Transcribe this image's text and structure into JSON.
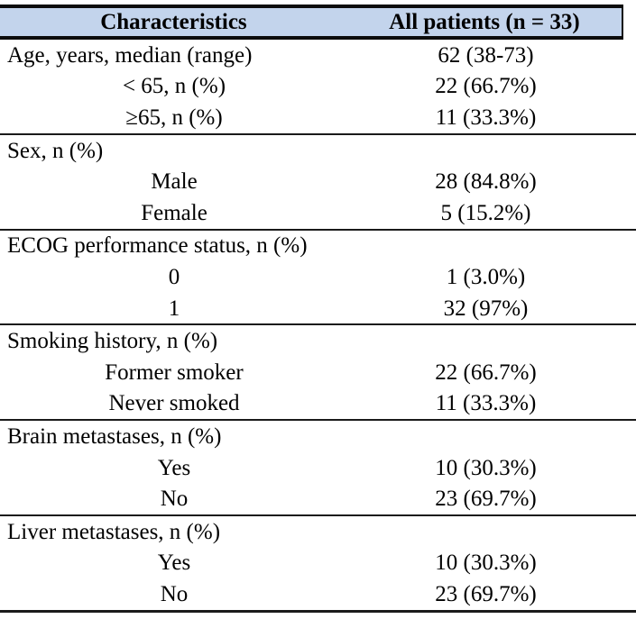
{
  "table": {
    "header": {
      "col1": "Characteristics",
      "col2": "All patients (n = 33)"
    },
    "sections": [
      {
        "rows": [
          {
            "label": "Age, years, median (range)",
            "value": "62 (38-73)",
            "indent": false
          },
          {
            "label": "< 65, n (%)",
            "value": "22 (66.7%)",
            "indent": true
          },
          {
            "label": "≥65, n (%)",
            "value": "11 (33.3%)",
            "indent": true
          }
        ]
      },
      {
        "rows": [
          {
            "label": "Sex, n (%)",
            "value": "",
            "indent": false
          },
          {
            "label": "Male",
            "value": "28 (84.8%)",
            "indent": true
          },
          {
            "label": "Female",
            "value": "5 (15.2%)",
            "indent": true
          }
        ]
      },
      {
        "rows": [
          {
            "label": "ECOG performance status, n (%)",
            "value": "",
            "indent": false
          },
          {
            "label": "0",
            "value": "1 (3.0%)",
            "indent": true
          },
          {
            "label": "1",
            "value": "32 (97%)",
            "indent": true
          }
        ]
      },
      {
        "rows": [
          {
            "label": "Smoking history, n (%)",
            "value": "",
            "indent": false
          },
          {
            "label": "Former smoker",
            "value": "22 (66.7%)",
            "indent": true
          },
          {
            "label": "Never smoked",
            "value": "11 (33.3%)",
            "indent": true
          }
        ]
      },
      {
        "rows": [
          {
            "label": "Brain metastases, n (%)",
            "value": "",
            "indent": false
          },
          {
            "label": "Yes",
            "value": "10 (30.3%)",
            "indent": true
          },
          {
            "label": "No",
            "value": "23 (69.7%)",
            "indent": true
          }
        ]
      },
      {
        "rows": [
          {
            "label": "Liver metastases, n (%)",
            "value": "",
            "indent": false
          },
          {
            "label": "Yes",
            "value": "10 (30.3%)",
            "indent": true
          },
          {
            "label": "No",
            "value": "23 (69.7%)",
            "indent": true
          }
        ]
      }
    ],
    "colors": {
      "header_bg": "#c3d4ec",
      "border": "#1a1a1a",
      "text": "#000000"
    }
  }
}
